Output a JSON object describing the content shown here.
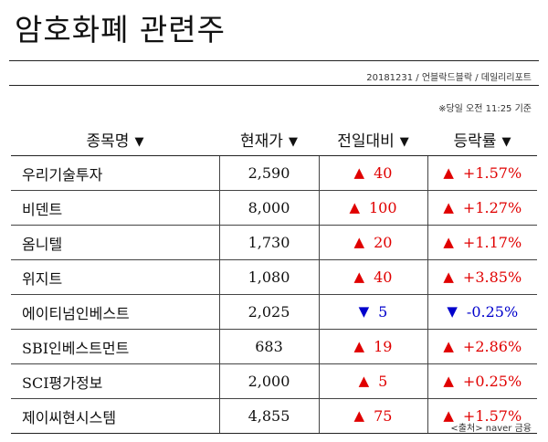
{
  "title": "암호화폐 관련주",
  "byline": "20181231 / 언블락드블락 / 데일리리포트",
  "as_of": "※당일 오전 11:25 기준",
  "columns": [
    {
      "label": "종목명",
      "sort_icon": "▼"
    },
    {
      "label": "현재가",
      "sort_icon": "▼"
    },
    {
      "label": "전일대비",
      "sort_icon": "▼"
    },
    {
      "label": "등락률",
      "sort_icon": "▼"
    }
  ],
  "rows": [
    {
      "name": "우리기술투자",
      "price": "2,590",
      "dir_icon": "▲",
      "change": "40",
      "rate_icon": "▲",
      "rate": "+1.57%"
    },
    {
      "name": "비덴트",
      "price": "8,000",
      "dir_icon": "▲",
      "change": "100",
      "rate_icon": "▲",
      "rate": "+1.27%"
    },
    {
      "name": "옴니텔",
      "price": "1,730",
      "dir_icon": "▲",
      "change": "20",
      "rate_icon": "▲",
      "rate": "+1.17%"
    },
    {
      "name": "위지트",
      "price": "1,080",
      "dir_icon": "▲",
      "change": "40",
      "rate_icon": "▲",
      "rate": "+3.85%"
    },
    {
      "name": "에이티넘인베스트",
      "price": "2,025",
      "dir_icon": "▼",
      "change": "5",
      "rate_icon": "▼",
      "rate": "-0.25%"
    },
    {
      "name": "SBI인베스트먼트",
      "price": "683",
      "dir_icon": "▲",
      "change": "19",
      "rate_icon": "▲",
      "rate": "+2.86%"
    },
    {
      "name": "SCI평가정보",
      "price": "2,000",
      "dir_icon": "▲",
      "change": "5",
      "rate_icon": "▲",
      "rate": "+0.25%"
    },
    {
      "name": "제이씨현시스템",
      "price": "4,855",
      "dir_icon": "▲",
      "change": "75",
      "rate_icon": "▲",
      "rate": "+1.57%"
    }
  ],
  "source": "<출처> naver 금융",
  "colors": {
    "up": "#e00000",
    "down": "#0000cc"
  }
}
